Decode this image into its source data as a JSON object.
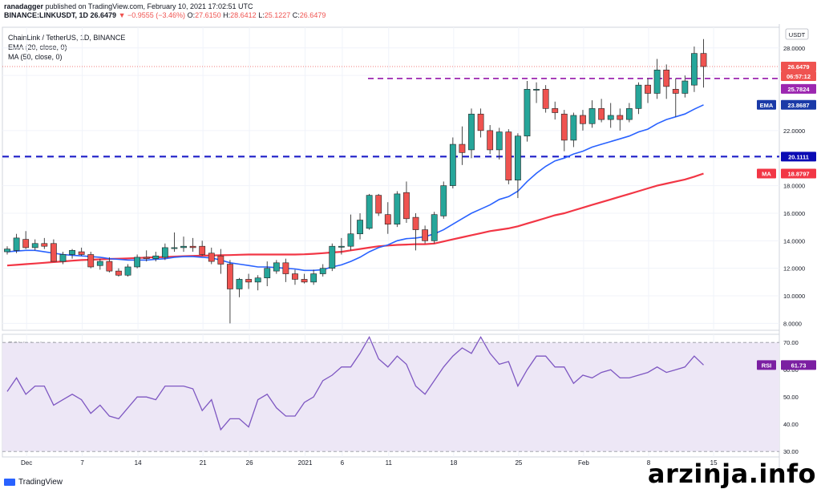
{
  "header": {
    "publisher": "ranadagger",
    "published_text": "published on TradingView.com, February 10, 2021 17:02:51 UTC",
    "symbol": "BINANCE:LINKUSDT, 1D",
    "last": "26.6479",
    "change": "▼ −0.9555 (−3.46%)",
    "o_label": "O:",
    "o": "27.6150",
    "h_label": "H:",
    "h": "28.6412",
    "l_label": "L:",
    "l": "25.1227",
    "c_label": "C:",
    "c": "26.6479"
  },
  "legend": {
    "title": "ChainLink / TetherUS, 1D, BINANCE",
    "ema": "EMA (20, close, 0)",
    "ma": "MA (50, close, 0)",
    "rsi": "RSI (14, close)"
  },
  "axis": {
    "unit": "USDT",
    "price_ticks": [
      "28.0000",
      "26.0000",
      "22.0000",
      "20.0000",
      "18.0000",
      "16.0000",
      "14.0000",
      "12.0000",
      "10.0000",
      "8.0000"
    ],
    "rsi_ticks": [
      "70.00",
      "60.00",
      "50.00",
      "40.00",
      "30.00"
    ],
    "x_ticks": [
      "Dec",
      "7",
      "14",
      "21",
      "26",
      "2021",
      "6",
      "11",
      "18",
      "25",
      "Feb",
      "8",
      "15"
    ]
  },
  "badges": {
    "price": "26.6479",
    "countdown": "06:57:12",
    "resistance": "25.7824",
    "ema_label": "EMA",
    "ema": "23.8687",
    "support": "20.1111",
    "ma_label": "MA",
    "ma": "18.8797",
    "rsi_label": "RSI",
    "rsi": "61.73"
  },
  "colors": {
    "up": "#26a69a",
    "down": "#ef5350",
    "ema": "#2962ff",
    "ma": "#f23645",
    "resistance_line": "#9c27b0",
    "support_line": "#1e1ec8",
    "rsi_line": "#7e57c2",
    "rsi_band": "#ede7f6"
  },
  "footer": {
    "logo_text": "TradingView",
    "watermark": "arzinja.info"
  },
  "chart_data": [
    {
      "type": "candlestick",
      "title": "ChainLink / TetherUS, 1D, BINANCE",
      "ylabel": "USDT",
      "ylim": [
        7.5,
        29.5
      ],
      "x_labels": [
        "Dec",
        "7",
        "14",
        "21",
        "26",
        "2021",
        "6",
        "11",
        "18",
        "25",
        "Feb",
        "8",
        "15"
      ],
      "candles": [
        {
          "o": 13.2,
          "h": 13.6,
          "l": 13.0,
          "c": 13.4
        },
        {
          "o": 13.3,
          "h": 14.5,
          "l": 13.1,
          "c": 14.2
        },
        {
          "o": 14.1,
          "h": 14.7,
          "l": 13.4,
          "c": 13.5
        },
        {
          "o": 13.5,
          "h": 14.1,
          "l": 13.3,
          "c": 13.8
        },
        {
          "o": 13.8,
          "h": 14.2,
          "l": 13.4,
          "c": 13.6
        },
        {
          "o": 13.8,
          "h": 14.1,
          "l": 12.5,
          "c": 12.5
        },
        {
          "o": 12.5,
          "h": 13.2,
          "l": 12.3,
          "c": 13.0
        },
        {
          "o": 13.0,
          "h": 13.4,
          "l": 12.7,
          "c": 13.3
        },
        {
          "o": 13.2,
          "h": 13.5,
          "l": 12.9,
          "c": 13.0
        },
        {
          "o": 13.0,
          "h": 13.2,
          "l": 12.0,
          "c": 12.1
        },
        {
          "o": 12.2,
          "h": 12.7,
          "l": 11.9,
          "c": 12.5
        },
        {
          "o": 12.5,
          "h": 12.8,
          "l": 11.7,
          "c": 11.8
        },
        {
          "o": 11.8,
          "h": 12.0,
          "l": 11.4,
          "c": 11.5
        },
        {
          "o": 11.5,
          "h": 12.3,
          "l": 11.4,
          "c": 12.1
        },
        {
          "o": 12.1,
          "h": 13.0,
          "l": 12.0,
          "c": 12.8
        },
        {
          "o": 12.8,
          "h": 13.3,
          "l": 12.5,
          "c": 12.7
        },
        {
          "o": 12.7,
          "h": 13.2,
          "l": 12.5,
          "c": 12.9
        },
        {
          "o": 12.8,
          "h": 13.8,
          "l": 12.6,
          "c": 13.5
        },
        {
          "o": 13.5,
          "h": 14.6,
          "l": 13.2,
          "c": 13.5
        },
        {
          "o": 13.5,
          "h": 14.3,
          "l": 13.2,
          "c": 13.6
        },
        {
          "o": 13.6,
          "h": 14.2,
          "l": 13.2,
          "c": 13.5
        },
        {
          "o": 13.6,
          "h": 14.0,
          "l": 12.9,
          "c": 13.0
        },
        {
          "o": 13.1,
          "h": 13.5,
          "l": 12.3,
          "c": 12.5
        },
        {
          "o": 12.9,
          "h": 13.4,
          "l": 11.6,
          "c": 12.3
        },
        {
          "o": 12.3,
          "h": 12.6,
          "l": 8.0,
          "c": 10.5
        },
        {
          "o": 10.5,
          "h": 11.3,
          "l": 9.9,
          "c": 11.2
        },
        {
          "o": 11.2,
          "h": 11.6,
          "l": 10.5,
          "c": 11.0
        },
        {
          "o": 11.0,
          "h": 11.5,
          "l": 10.4,
          "c": 11.3
        },
        {
          "o": 11.3,
          "h": 12.5,
          "l": 10.7,
          "c": 12.0
        },
        {
          "o": 11.8,
          "h": 12.6,
          "l": 11.6,
          "c": 12.4
        },
        {
          "o": 12.4,
          "h": 12.7,
          "l": 11.0,
          "c": 11.6
        },
        {
          "o": 11.6,
          "h": 11.9,
          "l": 10.8,
          "c": 11.2
        },
        {
          "o": 11.2,
          "h": 11.6,
          "l": 10.9,
          "c": 11.0
        },
        {
          "o": 11.0,
          "h": 11.9,
          "l": 10.8,
          "c": 11.6
        },
        {
          "o": 11.6,
          "h": 12.3,
          "l": 11.4,
          "c": 12.0
        },
        {
          "o": 12.0,
          "h": 13.8,
          "l": 11.8,
          "c": 13.6
        },
        {
          "o": 13.6,
          "h": 14.2,
          "l": 13.0,
          "c": 13.6
        },
        {
          "o": 13.6,
          "h": 15.9,
          "l": 13.3,
          "c": 14.5
        },
        {
          "o": 14.5,
          "h": 16.0,
          "l": 14.1,
          "c": 15.5
        },
        {
          "o": 14.9,
          "h": 17.4,
          "l": 14.8,
          "c": 17.3
        },
        {
          "o": 17.3,
          "h": 17.4,
          "l": 15.8,
          "c": 16.0
        },
        {
          "o": 15.9,
          "h": 16.8,
          "l": 14.5,
          "c": 15.2
        },
        {
          "o": 15.2,
          "h": 17.6,
          "l": 15.0,
          "c": 17.4
        },
        {
          "o": 17.5,
          "h": 18.3,
          "l": 15.3,
          "c": 15.6
        },
        {
          "o": 15.7,
          "h": 16.0,
          "l": 13.3,
          "c": 14.8
        },
        {
          "o": 14.8,
          "h": 15.1,
          "l": 13.8,
          "c": 14.0
        },
        {
          "o": 14.0,
          "h": 16.1,
          "l": 13.8,
          "c": 15.9
        },
        {
          "o": 15.8,
          "h": 18.3,
          "l": 15.6,
          "c": 18.0
        },
        {
          "o": 18.0,
          "h": 21.5,
          "l": 17.8,
          "c": 21.0
        },
        {
          "o": 21.0,
          "h": 22.3,
          "l": 19.5,
          "c": 20.4
        },
        {
          "o": 20.6,
          "h": 23.6,
          "l": 20.0,
          "c": 23.2
        },
        {
          "o": 23.2,
          "h": 23.6,
          "l": 21.5,
          "c": 22.0
        },
        {
          "o": 22.0,
          "h": 22.4,
          "l": 20.3,
          "c": 20.6
        },
        {
          "o": 20.6,
          "h": 22.2,
          "l": 19.9,
          "c": 21.9
        },
        {
          "o": 21.9,
          "h": 22.1,
          "l": 18.1,
          "c": 18.4
        },
        {
          "o": 18.4,
          "h": 21.8,
          "l": 17.1,
          "c": 21.6
        },
        {
          "o": 21.6,
          "h": 25.6,
          "l": 21.2,
          "c": 25.0
        },
        {
          "o": 25.0,
          "h": 25.5,
          "l": 24.0,
          "c": 25.0
        },
        {
          "o": 25.0,
          "h": 25.3,
          "l": 23.3,
          "c": 23.6
        },
        {
          "o": 23.6,
          "h": 24.1,
          "l": 22.8,
          "c": 23.3
        },
        {
          "o": 23.2,
          "h": 23.5,
          "l": 20.5,
          "c": 21.3
        },
        {
          "o": 21.3,
          "h": 23.3,
          "l": 20.8,
          "c": 23.1
        },
        {
          "o": 23.1,
          "h": 23.5,
          "l": 22.0,
          "c": 22.5
        },
        {
          "o": 22.5,
          "h": 24.2,
          "l": 22.2,
          "c": 23.6
        },
        {
          "o": 23.6,
          "h": 24.3,
          "l": 22.6,
          "c": 22.8
        },
        {
          "o": 22.8,
          "h": 24.0,
          "l": 22.2,
          "c": 23.1
        },
        {
          "o": 23.1,
          "h": 23.6,
          "l": 22.0,
          "c": 22.8
        },
        {
          "o": 22.8,
          "h": 24.0,
          "l": 22.6,
          "c": 23.6
        },
        {
          "o": 23.6,
          "h": 25.5,
          "l": 23.2,
          "c": 25.3
        },
        {
          "o": 25.3,
          "h": 25.8,
          "l": 24.0,
          "c": 24.7
        },
        {
          "o": 24.7,
          "h": 27.2,
          "l": 24.3,
          "c": 26.4
        },
        {
          "o": 26.4,
          "h": 26.8,
          "l": 24.3,
          "c": 25.2
        },
        {
          "o": 25.0,
          "h": 25.8,
          "l": 23.0,
          "c": 24.7
        },
        {
          "o": 24.7,
          "h": 26.0,
          "l": 24.4,
          "c": 25.6
        },
        {
          "o": 25.3,
          "h": 28.1,
          "l": 24.8,
          "c": 27.6
        },
        {
          "o": 27.6,
          "h": 28.6412,
          "l": 25.1227,
          "c": 26.6479
        }
      ],
      "ema_20": [
        13.2,
        13.25,
        13.3,
        13.3,
        13.2,
        13.1,
        13.0,
        12.95,
        12.9,
        12.85,
        12.8,
        12.7,
        12.65,
        12.6,
        12.6,
        12.6,
        12.65,
        12.7,
        12.8,
        12.85,
        12.85,
        12.8,
        12.75,
        12.6,
        12.4,
        12.3,
        12.2,
        12.1,
        12.1,
        12.05,
        12.0,
        11.95,
        11.85,
        11.85,
        11.9,
        12.1,
        12.25,
        12.5,
        12.8,
        13.2,
        13.5,
        13.7,
        14.0,
        14.15,
        14.2,
        14.3,
        14.5,
        14.8,
        15.2,
        15.6,
        16.0,
        16.3,
        16.6,
        17.0,
        17.2,
        17.6,
        18.3,
        18.9,
        19.4,
        19.8,
        20.0,
        20.3,
        20.5,
        20.8,
        21.0,
        21.2,
        21.4,
        21.6,
        21.9,
        22.1,
        22.5,
        22.8,
        23.0,
        23.2,
        23.55,
        23.8687
      ],
      "ma_50": [
        12.2,
        12.25,
        12.3,
        12.35,
        12.4,
        12.45,
        12.5,
        12.55,
        12.6,
        12.62,
        12.65,
        12.68,
        12.7,
        12.72,
        12.75,
        12.78,
        12.8,
        12.82,
        12.85,
        12.88,
        12.9,
        12.92,
        12.93,
        12.95,
        12.96,
        12.98,
        13.0,
        13.0,
        13.0,
        13.0,
        13.0,
        13.0,
        13.02,
        13.05,
        13.1,
        13.15,
        13.2,
        13.3,
        13.4,
        13.5,
        13.6,
        13.65,
        13.7,
        13.72,
        13.75,
        13.75,
        13.8,
        13.95,
        14.1,
        14.25,
        14.4,
        14.55,
        14.7,
        14.8,
        14.9,
        15.05,
        15.25,
        15.45,
        15.65,
        15.85,
        16.0,
        16.2,
        16.4,
        16.6,
        16.8,
        17.0,
        17.2,
        17.4,
        17.6,
        17.8,
        18.0,
        18.15,
        18.3,
        18.45,
        18.65,
        18.8797
      ],
      "levels": {
        "resistance": 25.7824,
        "support": 20.1111
      },
      "last_price": 26.6479
    },
    {
      "type": "line",
      "title": "RSI (14, close)",
      "ylim": [
        28,
        73
      ],
      "bands": [
        30,
        70
      ],
      "values": [
        52,
        57,
        51,
        54,
        54,
        47,
        49,
        51,
        49,
        44,
        47,
        43,
        42,
        46,
        50,
        50,
        49,
        54,
        54,
        54,
        53,
        45,
        49,
        38,
        42,
        42,
        39,
        49,
        51,
        46,
        43,
        43,
        48,
        50,
        56,
        58,
        61,
        61,
        66,
        72,
        64,
        61,
        65,
        62,
        54,
        51,
        56,
        61,
        65,
        68,
        66,
        72,
        66,
        62,
        63,
        54,
        60,
        65,
        65,
        61,
        61,
        55,
        58,
        57,
        59,
        60,
        57,
        57,
        58,
        59,
        61,
        59,
        60,
        61,
        65,
        61.73
      ]
    }
  ]
}
